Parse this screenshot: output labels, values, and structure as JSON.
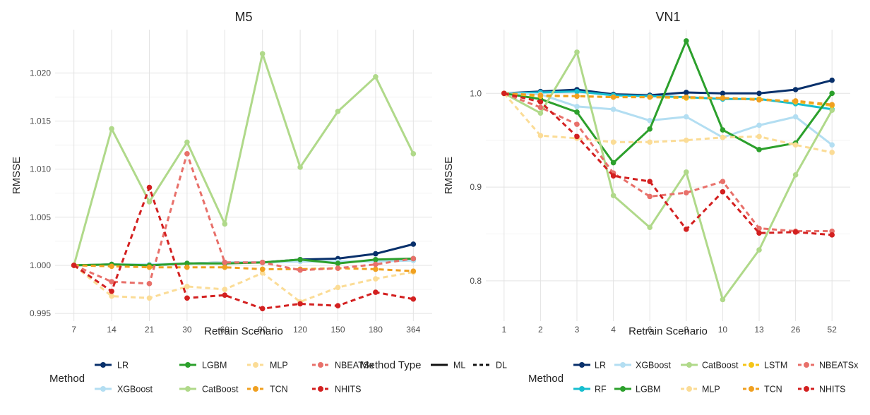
{
  "chart_data": [
    {
      "type": "line",
      "title": "M5",
      "xlabel": "Retrain Scenario",
      "ylabel": "RMSSE",
      "categories": [
        "7",
        "14",
        "21",
        "30",
        "60",
        "90",
        "120",
        "150",
        "180",
        "364"
      ],
      "ylim": [
        0.9942,
        1.0245
      ],
      "yticks": [
        0.995,
        1.0,
        1.005,
        1.01,
        1.015,
        1.02
      ],
      "ytick_labels": [
        "0.995",
        "1.000",
        "1.005",
        "1.010",
        "1.015",
        "1.020"
      ],
      "grid": true,
      "series": [
        {
          "name": "LR",
          "type": "ML",
          "color": "#08306b",
          "values": [
            1.0,
            1.0001,
            1.0,
            1.0002,
            1.0003,
            1.0003,
            1.0006,
            1.0007,
            1.0012,
            1.0022
          ]
        },
        {
          "name": "XGBoost",
          "type": "ML",
          "color": "#b3def2",
          "values": [
            1.0,
            1.0001,
            1.0001,
            1.0002,
            1.0003,
            1.0003,
            1.0004,
            1.0004,
            1.0004,
            1.0005
          ]
        },
        {
          "name": "LGBM",
          "type": "ML",
          "color": "#2ca02c",
          "values": [
            1.0,
            1.0001,
            1.0,
            1.0002,
            1.0002,
            1.0003,
            1.0006,
            1.0002,
            1.0006,
            1.0007
          ]
        },
        {
          "name": "CatBoost",
          "type": "ML",
          "color": "#b0d98a",
          "values": [
            1.0,
            1.0142,
            1.0066,
            1.0128,
            1.0043,
            1.022,
            1.0102,
            1.016,
            1.0196,
            1.0116
          ]
        },
        {
          "name": "MLP",
          "type": "DL",
          "color": "#fbdc96",
          "values": [
            1.0,
            0.9968,
            0.9966,
            0.9978,
            0.9975,
            0.9992,
            0.9962,
            0.9977,
            0.9986,
            0.9993
          ]
        },
        {
          "name": "TCN",
          "type": "DL",
          "color": "#f0a020",
          "values": [
            1.0,
            0.9999,
            0.9998,
            0.9998,
            0.9998,
            0.9996,
            0.9996,
            0.9997,
            0.9996,
            0.9994
          ]
        },
        {
          "name": "NBEATSx",
          "type": "DL",
          "color": "#e8706a",
          "values": [
            1.0,
            0.9983,
            0.9981,
            1.0116,
            1.0003,
            1.0003,
            0.9995,
            0.9997,
            1.0001,
            1.0007
          ]
        },
        {
          "name": "NHITS",
          "type": "DL",
          "color": "#d32020",
          "values": [
            1.0,
            0.9973,
            1.0081,
            0.9966,
            0.9969,
            0.9955,
            0.996,
            0.9958,
            0.9972,
            0.9965
          ]
        }
      ]
    },
    {
      "type": "line",
      "title": "VN1",
      "xlabel": "Retrain Scenario",
      "ylabel": "RMSSE",
      "categories": [
        "1",
        "2",
        "3",
        "4",
        "6",
        "8",
        "10",
        "13",
        "26",
        "52"
      ],
      "ylim": [
        0.757,
        1.068
      ],
      "yticks": [
        0.8,
        0.9,
        1.0
      ],
      "ytick_labels": [
        "0.8",
        "0.9",
        "1.0"
      ],
      "grid": true,
      "series": [
        {
          "name": "LR",
          "type": "ML",
          "color": "#08306b",
          "values": [
            1.0,
            1.002,
            1.004,
            0.999,
            0.998,
            1.001,
            1.0,
            1.0,
            1.004,
            1.014
          ]
        },
        {
          "name": "RF",
          "type": "ML",
          "color": "#17becf",
          "values": [
            1.0,
            1.001,
            1.002,
            0.998,
            0.997,
            0.996,
            0.994,
            0.994,
            0.989,
            0.983
          ]
        },
        {
          "name": "XGBoost",
          "type": "ML",
          "color": "#b3def2",
          "values": [
            1.0,
            0.999,
            0.986,
            0.983,
            0.971,
            0.975,
            0.953,
            0.966,
            0.975,
            0.945
          ]
        },
        {
          "name": "LGBM",
          "type": "ML",
          "color": "#2ca02c",
          "values": [
            1.0,
            0.994,
            0.98,
            0.926,
            0.962,
            1.056,
            0.961,
            0.94,
            0.947,
            1.0
          ]
        },
        {
          "name": "CatBoost",
          "type": "ML",
          "color": "#b0d98a",
          "values": [
            1.0,
            0.979,
            1.044,
            0.891,
            0.857,
            0.916,
            0.78,
            0.833,
            0.913,
            0.982
          ]
        },
        {
          "name": "MLP",
          "type": "DL",
          "color": "#fbdc96",
          "values": [
            1.0,
            0.955,
            0.952,
            0.948,
            0.948,
            0.95,
            0.953,
            0.954,
            0.945,
            0.937
          ]
        },
        {
          "name": "LSTM",
          "type": "DL",
          "color": "#f5c518",
          "values": [
            1.0,
            0.997,
            0.997,
            0.996,
            0.996,
            0.995,
            0.995,
            0.994,
            0.991,
            0.987
          ]
        },
        {
          "name": "TCN",
          "type": "DL",
          "color": "#f0a020",
          "values": [
            1.0,
            0.998,
            0.997,
            0.996,
            0.996,
            0.996,
            0.995,
            0.993,
            0.992,
            0.988
          ]
        },
        {
          "name": "NBEATSx",
          "type": "DL",
          "color": "#e8706a",
          "values": [
            1.0,
            0.985,
            0.967,
            0.915,
            0.89,
            0.894,
            0.906,
            0.856,
            0.853,
            0.853
          ]
        },
        {
          "name": "NHITS",
          "type": "DL",
          "color": "#d32020",
          "values": [
            1.0,
            0.991,
            0.954,
            0.912,
            0.906,
            0.855,
            0.895,
            0.851,
            0.852,
            0.849
          ]
        }
      ]
    }
  ],
  "legends": [
    {
      "title": "Method",
      "items": [
        "LR",
        "LGBM",
        "MLP",
        "NBEATSx",
        "XGBoost",
        "CatBoost",
        "TCN",
        "NHITS"
      ],
      "type_title": "Method Type",
      "type_items": [
        "ML",
        "DL"
      ]
    },
    {
      "title": "Method",
      "items": [
        "LR",
        "XGBoost",
        "CatBoost",
        "LSTM",
        "NBEATSx",
        "RF",
        "LGBM",
        "MLP",
        "TCN",
        "NHITS"
      ]
    }
  ]
}
